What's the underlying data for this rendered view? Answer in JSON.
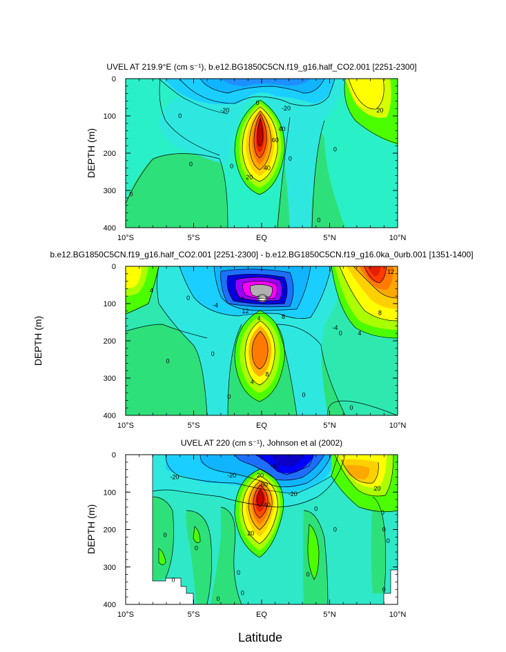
{
  "chart_data": [
    {
      "type": "heatmap",
      "title": "UVEL AT 219.9°E (cm s⁻¹), b.e12.BG1850C5CN.f19_g16.half_CO2.001 [2251-2300]",
      "ylabel": "DEPTH (m)",
      "xlim": [
        -10,
        10
      ],
      "ylim": [
        400,
        0
      ],
      "xticks": [
        "10°S",
        "5°S",
        "EQ",
        "5°N",
        "10°N"
      ],
      "yticks": [
        "0",
        "100",
        "200",
        "300",
        "400"
      ],
      "contour_labels": [
        {
          "text": "-20",
          "x": -2.7,
          "y": 85
        },
        {
          "text": "-20",
          "x": 1.8,
          "y": 80
        },
        {
          "text": "20",
          "x": 8.7,
          "y": 85
        },
        {
          "text": "0",
          "x": -6.0,
          "y": 100
        },
        {
          "text": "0",
          "x": -0.3,
          "y": 65
        },
        {
          "text": "0",
          "x": 5.4,
          "y": 190
        },
        {
          "text": "0",
          "x": -5.2,
          "y": 230
        },
        {
          "text": "0",
          "x": -2.2,
          "y": 235
        },
        {
          "text": "0",
          "x": -9.6,
          "y": 310
        },
        {
          "text": "0",
          "x": 4.2,
          "y": 380
        },
        {
          "text": "40",
          "x": 1.5,
          "y": 135
        },
        {
          "text": "60",
          "x": 1.0,
          "y": 165
        },
        {
          "text": "0",
          "x": 2.1,
          "y": 215
        },
        {
          "text": "40",
          "x": 0.4,
          "y": 240
        },
        {
          "text": "20",
          "x": -0.9,
          "y": 265
        }
      ]
    },
    {
      "type": "heatmap",
      "title": "b.e12.BG1850C5CN.f19_g16.half_CO2.001 [2251-2300] - b.e12.BG1850C5CN.f19_g16.0ka_0urb.001 [1351-1400]",
      "ylabel": "DEPTH (m)",
      "xlim": [
        -10,
        10
      ],
      "ylim": [
        400,
        0
      ],
      "xticks": [
        "10°S",
        "5°S",
        "EQ",
        "5°N",
        "10°N"
      ],
      "yticks": [
        "0",
        "100",
        "200",
        "300",
        "400"
      ],
      "contour_labels": [
        {
          "text": "4",
          "x": -8.1,
          "y": 65
        },
        {
          "text": "0",
          "x": -5.4,
          "y": 85
        },
        {
          "text": "-4",
          "x": -3.4,
          "y": 105
        },
        {
          "text": "-8",
          "x": -1.5,
          "y": 88
        },
        {
          "text": "12",
          "x": -1.2,
          "y": 120
        },
        {
          "text": "-4",
          "x": 5.4,
          "y": 165
        },
        {
          "text": "4",
          "x": -0.2,
          "y": 140
        },
        {
          "text": "8",
          "x": 1.6,
          "y": 135
        },
        {
          "text": "0",
          "x": 5.8,
          "y": 180
        },
        {
          "text": "4",
          "x": 7.2,
          "y": 180
        },
        {
          "text": "8",
          "x": 8.7,
          "y": 125
        },
        {
          "text": "12",
          "x": 9.5,
          "y": 15
        },
        {
          "text": "0",
          "x": -3.6,
          "y": 235
        },
        {
          "text": "0",
          "x": -6.9,
          "y": 255
        },
        {
          "text": "8",
          "x": 0.4,
          "y": 290
        },
        {
          "text": "4",
          "x": -0.7,
          "y": 310
        },
        {
          "text": "0",
          "x": 3.1,
          "y": 345
        },
        {
          "text": "0",
          "x": -2.4,
          "y": 350
        },
        {
          "text": "0",
          "x": 6.6,
          "y": 380
        }
      ]
    },
    {
      "type": "heatmap",
      "title": "UVEL AT 220 (cm s⁻¹), Johnson et al (2002)",
      "ylabel": "DEPTH (m)",
      "xlabel": "Latitude",
      "xlim": [
        -10,
        10
      ],
      "ylim": [
        400,
        0
      ],
      "xticks": [
        "10°S",
        "5°S",
        "EQ",
        "5°N",
        "10°N"
      ],
      "yticks": [
        "0",
        "100",
        "200",
        "300",
        "400"
      ],
      "contour_labels": [
        {
          "text": "-20",
          "x": -6.4,
          "y": 60
        },
        {
          "text": "-20",
          "x": -2.2,
          "y": 55
        },
        {
          "text": "-40",
          "x": 1.0,
          "y": 30
        },
        {
          "text": "20",
          "x": -0.1,
          "y": 55
        },
        {
          "text": "20",
          "x": 8.5,
          "y": 90
        },
        {
          "text": "-20",
          "x": 2.3,
          "y": 105
        },
        {
          "text": "60",
          "x": 0.2,
          "y": 80
        },
        {
          "text": "40",
          "x": 0.4,
          "y": 135
        },
        {
          "text": "20",
          "x": -0.8,
          "y": 210
        },
        {
          "text": "0",
          "x": 4.0,
          "y": 145
        },
        {
          "text": "0",
          "x": 8.9,
          "y": 155
        },
        {
          "text": "0",
          "x": 5.4,
          "y": 200
        },
        {
          "text": "0",
          "x": 9.0,
          "y": 200
        },
        {
          "text": "0",
          "x": 9.3,
          "y": 230
        },
        {
          "text": "0",
          "x": -7.1,
          "y": 215
        },
        {
          "text": "0",
          "x": -4.8,
          "y": 250
        },
        {
          "text": "0",
          "x": -1.7,
          "y": 315
        },
        {
          "text": "0",
          "x": 3.4,
          "y": 320
        },
        {
          "text": "0",
          "x": 9.0,
          "y": 360
        },
        {
          "text": "0",
          "x": -6.5,
          "y": 335
        },
        {
          "text": "0",
          "x": -1.4,
          "y": 370
        },
        {
          "text": "0",
          "x": -3.2,
          "y": 385
        }
      ]
    }
  ]
}
